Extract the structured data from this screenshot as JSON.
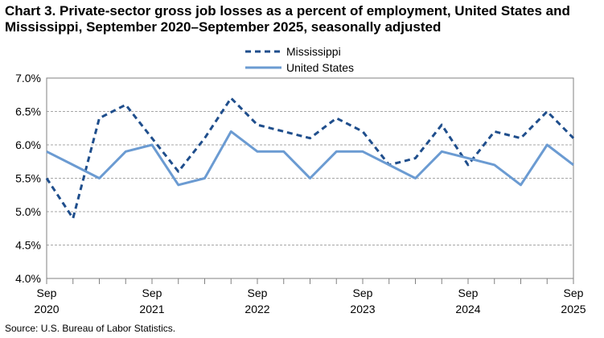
{
  "chart_data": {
    "type": "line",
    "title": "Chart 3. Private-sector gross job losses as a percent of employment, United States and Mississippi,  September 2020–September 2025, seasonally adjusted",
    "source": "Source: U.S. Bureau of Labor Statistics.",
    "x": [
      "Sep 2020",
      "Dec 2020",
      "Mar 2021",
      "Jun 2021",
      "Sep 2021",
      "Dec 2021",
      "Mar 2022",
      "Jun 2022",
      "Sep 2022",
      "Dec 2022",
      "Mar 2023",
      "Jun 2023",
      "Sep 2023",
      "Dec 2023",
      "Mar 2024",
      "Jun 2024",
      "Sep 2024",
      "Dec 2024",
      "Mar 2025",
      "Jun 2025",
      "Sep 2025"
    ],
    "x_tick_labels": [
      {
        "month": "Sep",
        "year": "2020",
        "index": 0
      },
      {
        "month": "Sep",
        "year": "2021",
        "index": 4
      },
      {
        "month": "Sep",
        "year": "2022",
        "index": 8
      },
      {
        "month": "Sep",
        "year": "2023",
        "index": 12
      },
      {
        "month": "Sep",
        "year": "2024",
        "index": 16
      },
      {
        "month": "Sep",
        "year": "2025",
        "index": 20
      }
    ],
    "series": [
      {
        "name": "Mississippi",
        "color": "#1f4e8c",
        "style": "dashed",
        "values": [
          5.5,
          4.9,
          6.4,
          6.6,
          6.1,
          5.6,
          6.1,
          6.7,
          6.3,
          6.2,
          6.1,
          6.4,
          6.2,
          5.7,
          5.8,
          6.3,
          5.7,
          6.2,
          6.1,
          6.5,
          6.1
        ]
      },
      {
        "name": "United States",
        "color": "#6b9bd2",
        "style": "solid",
        "values": [
          5.9,
          5.7,
          5.5,
          5.9,
          6.0,
          5.4,
          5.5,
          6.2,
          5.9,
          5.9,
          5.5,
          5.9,
          5.9,
          5.7,
          5.5,
          5.9,
          5.8,
          5.7,
          5.4,
          6.0,
          5.7
        ]
      }
    ],
    "ylim": [
      4.0,
      7.0
    ],
    "y_ticks": [
      "4.0%",
      "4.5%",
      "5.0%",
      "5.5%",
      "6.0%",
      "6.5%",
      "7.0%"
    ],
    "y_tick_values": [
      4.0,
      4.5,
      5.0,
      5.5,
      6.0,
      6.5,
      7.0
    ],
    "grid": true,
    "legend": "top-center"
  }
}
